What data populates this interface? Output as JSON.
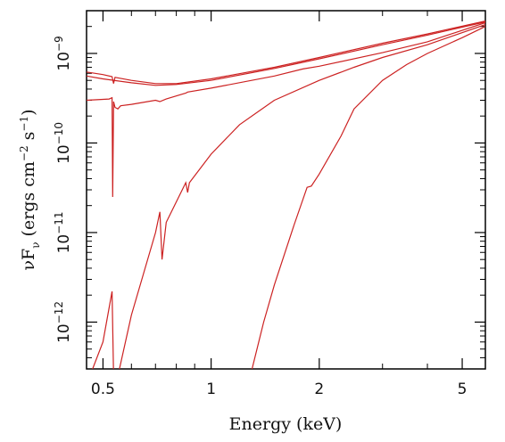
{
  "chart_data": {
    "type": "line",
    "title": "",
    "xlabel": "Energy (keV)",
    "ylabel": {
      "text": "νF",
      "sub": "ν",
      "units": "(ergs cm",
      "units_exp": "−2",
      "units_mid": " s",
      "units_exp2": "−1",
      "units_end": ")"
    },
    "x_scale": "log",
    "y_scale": "log",
    "xlim": [
      0.45,
      5.8
    ],
    "ylim": [
      3e-13,
      3e-09
    ],
    "x_ticks": [
      {
        "value": 0.5,
        "label": "0.5"
      },
      {
        "value": 1,
        "label": "1"
      },
      {
        "value": 2,
        "label": "2"
      },
      {
        "value": 5,
        "label": "5"
      }
    ],
    "y_ticks": [
      {
        "value": 1e-12,
        "base": "10",
        "exp": "−12"
      },
      {
        "value": 1e-11,
        "base": "10",
        "exp": "−11"
      },
      {
        "value": 1e-10,
        "base": "10",
        "exp": "−10"
      },
      {
        "value": 1e-09,
        "base": "10",
        "exp": "−9"
      }
    ],
    "grid": false,
    "series_color": "#cc2222",
    "series": [
      {
        "x": [
          0.45,
          0.5,
          0.53,
          0.535,
          0.54,
          0.6,
          0.7,
          0.8,
          1.0,
          1.5,
          2.0,
          3.0,
          4.0,
          5.8
        ],
        "y": [
          6.2e-10,
          5.8e-10,
          5.5e-10,
          4.6e-10,
          5.4e-10,
          5e-10,
          4.6e-10,
          4.6e-10,
          5.2e-10,
          7e-10,
          9e-10,
          1.3e-09,
          1.65e-09,
          2.3e-09
        ]
      },
      {
        "x": [
          0.45,
          0.5,
          0.6,
          0.7,
          0.8,
          1.0,
          1.5,
          2.0,
          3.0,
          4.0,
          5.8
        ],
        "y": [
          5.6e-10,
          5.2e-10,
          4.7e-10,
          4.4e-10,
          4.5e-10,
          5e-10,
          6.8e-10,
          8.7e-10,
          1.25e-09,
          1.6e-09,
          2.25e-09
        ]
      },
      {
        "x": [
          0.45,
          0.52,
          0.53,
          0.532,
          0.535,
          0.54,
          0.55,
          0.56,
          0.6,
          0.7,
          0.72,
          0.75,
          0.85,
          0.86,
          1.0,
          1.5,
          1.8,
          2.0,
          3.0,
          4.0,
          5.8
        ],
        "y": [
          3e-10,
          3.1e-10,
          3.2e-10,
          2.5e-11,
          2.9e-10,
          2.5e-10,
          2.4e-10,
          2.6e-10,
          2.7e-10,
          3e-10,
          2.9e-10,
          3.1e-10,
          3.6e-10,
          3.7e-10,
          4.1e-10,
          5.6e-10,
          6.7e-10,
          7.2e-10,
          1.02e-09,
          1.35e-09,
          2.2e-09
        ]
      },
      {
        "x": [
          0.45,
          0.5,
          0.53,
          0.535,
          0.55,
          0.6,
          0.7,
          0.72,
          0.73,
          0.75,
          0.85,
          0.86,
          0.87,
          1.0,
          1.2,
          1.5,
          2.0,
          2.5,
          3.0,
          4.0,
          5.8
        ],
        "y": [
          2e-13,
          6e-13,
          2.2e-12,
          2.5e-13,
          2.5e-13,
          1.2e-12,
          1e-11,
          1.7e-11,
          5e-12,
          1.3e-11,
          3.6e-11,
          2.8e-11,
          3.6e-11,
          7.5e-11,
          1.6e-10,
          3e-10,
          5e-10,
          7e-10,
          9e-10,
          1.25e-09,
          2.1e-09
        ]
      },
      {
        "x": [
          1.3,
          1.4,
          1.5,
          1.7,
          1.85,
          1.9,
          2.0,
          2.3,
          2.5,
          3.0,
          3.5,
          4.0,
          5.0,
          5.8
        ],
        "y": [
          3e-13,
          1e-12,
          2.6e-12,
          1.2e-11,
          3.2e-11,
          3.3e-11,
          4.5e-11,
          1.2e-10,
          2.4e-10,
          5e-10,
          7.5e-10,
          1e-09,
          1.5e-09,
          2e-09
        ]
      }
    ]
  }
}
